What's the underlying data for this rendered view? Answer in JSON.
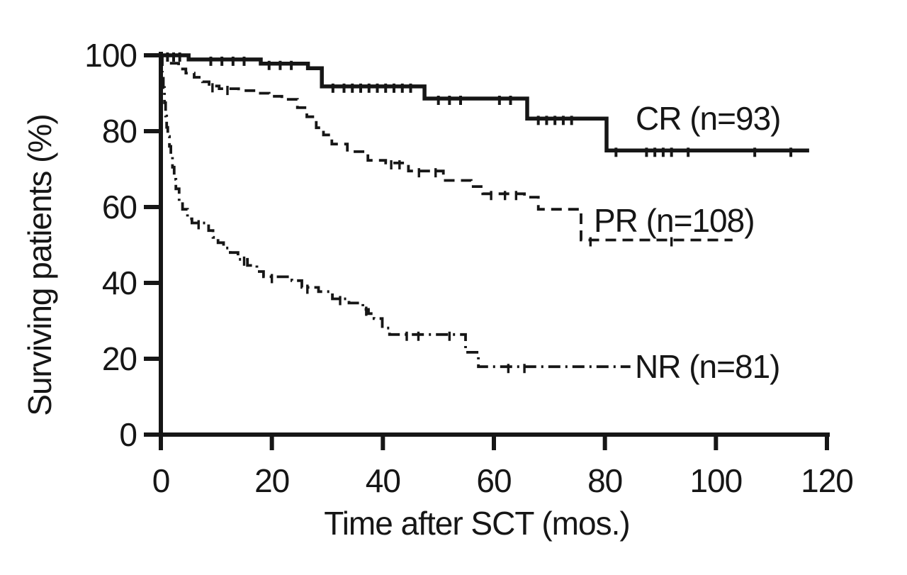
{
  "figure": {
    "background_color": "#ffffff",
    "ink_color": "#161616"
  },
  "chart_data": {
    "type": "line",
    "subtype": "kaplan-meier-step",
    "title": "",
    "xlabel": "Time after SCT (mos.)",
    "ylabel": "Surviving patients (%)",
    "xlim": [
      0,
      120
    ],
    "ylim": [
      0,
      100
    ],
    "x_ticks": [
      0,
      20,
      40,
      60,
      80,
      100,
      120
    ],
    "y_ticks": [
      0,
      20,
      40,
      60,
      80,
      100
    ],
    "grid": false,
    "legend_position": "inline-right-of-curves",
    "series": [
      {
        "name": "CR",
        "label": "CR (n=93)",
        "line_style": "solid",
        "points": [
          [
            0,
            100
          ],
          [
            5,
            98.9
          ],
          [
            18,
            97.8
          ],
          [
            26.5,
            96.6
          ],
          [
            29,
            91.8
          ],
          [
            47.5,
            88.6
          ],
          [
            66,
            83.3
          ],
          [
            80.3,
            74.9
          ],
          [
            116.8,
            74.9
          ]
        ],
        "censor_marks": [
          1.2,
          2.3,
          3.4,
          9,
          11,
          13,
          15,
          19.5,
          21.5,
          23.5,
          31,
          33,
          34.5,
          36,
          37.5,
          39,
          40.5,
          42,
          43.5,
          45,
          50,
          52,
          54,
          61,
          63,
          68,
          69.5,
          71,
          72.5,
          74,
          82,
          87.5,
          89,
          90.5,
          92,
          95,
          107,
          113.5
        ]
      },
      {
        "name": "PR",
        "label": "PR (n=108)",
        "line_style": "dashed",
        "points": [
          [
            0,
            100
          ],
          [
            1.6,
            97.9
          ],
          [
            3.2,
            96.4
          ],
          [
            4.5,
            95.3
          ],
          [
            6,
            94.2
          ],
          [
            7.5,
            93
          ],
          [
            8.7,
            91.9
          ],
          [
            10.5,
            91.2
          ],
          [
            14,
            90.7
          ],
          [
            17,
            90
          ],
          [
            19.5,
            89.2
          ],
          [
            21.8,
            88.4
          ],
          [
            24.6,
            86.2
          ],
          [
            26.3,
            83.8
          ],
          [
            28,
            80.9
          ],
          [
            29.3,
            79
          ],
          [
            30.8,
            76.6
          ],
          [
            33.6,
            74.6
          ],
          [
            37.3,
            72.3
          ],
          [
            40.5,
            71.6
          ],
          [
            44.6,
            69.5
          ],
          [
            50.9,
            67
          ],
          [
            55.9,
            65.4
          ],
          [
            58,
            63.5
          ],
          [
            65.5,
            62.6
          ],
          [
            68,
            59.4
          ],
          [
            75.7,
            51.3
          ],
          [
            103,
            51.3
          ]
        ],
        "censor_marks": [
          9.3,
          12,
          41.5,
          43,
          46.5,
          49.5,
          59.5,
          62,
          64,
          77.4,
          92
        ]
      },
      {
        "name": "NR",
        "label": "NR (n=81)",
        "line_style": "dashdot",
        "points": [
          [
            0,
            100
          ],
          [
            0.25,
            95.5
          ],
          [
            0.45,
            91.5
          ],
          [
            0.65,
            87.5
          ],
          [
            0.85,
            84
          ],
          [
            1.05,
            81
          ],
          [
            1.25,
            78.6
          ],
          [
            1.55,
            76
          ],
          [
            1.8,
            73.5
          ],
          [
            2.1,
            70.5
          ],
          [
            2.4,
            67.3
          ],
          [
            2.7,
            64.8
          ],
          [
            3.3,
            61.6
          ],
          [
            3.9,
            59.4
          ],
          [
            4.8,
            56.9
          ],
          [
            5.6,
            55.8
          ],
          [
            8.6,
            53.8
          ],
          [
            9.4,
            52
          ],
          [
            10.3,
            50.6
          ],
          [
            11.3,
            49.2
          ],
          [
            12.5,
            48
          ],
          [
            13.9,
            46.2
          ],
          [
            15.6,
            44.6
          ],
          [
            17.3,
            43
          ],
          [
            18.5,
            41.6
          ],
          [
            23.6,
            40.6
          ],
          [
            25.4,
            38.8
          ],
          [
            28.4,
            37.7
          ],
          [
            30.9,
            35.8
          ],
          [
            33.9,
            34.7
          ],
          [
            36.4,
            33
          ],
          [
            37.4,
            31.9
          ],
          [
            38.4,
            30.6
          ],
          [
            39.9,
            28.1
          ],
          [
            41.2,
            26.4
          ],
          [
            54.9,
            21.7
          ],
          [
            57.2,
            17.9
          ],
          [
            84.6,
            17.9
          ]
        ],
        "censor_marks": [
          6.8,
          15,
          20,
          26.4,
          32.3,
          37,
          44.3,
          46.4,
          52,
          62.6,
          65.5
        ]
      }
    ]
  }
}
